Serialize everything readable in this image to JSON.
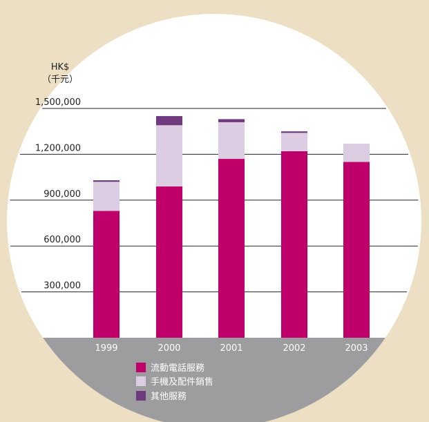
{
  "colors": {
    "background": "#ecdfc4",
    "disc": "#ffffff",
    "axis_band": "#9d9c9f",
    "mobile": "#c0006a",
    "handsets": "#dccde2",
    "others": "#6f3b7e",
    "gridline": "#222222"
  },
  "chart_data": {
    "type": "bar",
    "stacked": true,
    "unit_label": [
      "HK$",
      "（千元）"
    ],
    "categories": [
      "1999",
      "2000",
      "2001",
      "2002",
      "2003"
    ],
    "y_ticks": [
      "300,000",
      "600,000",
      "900,000",
      "1,200,000",
      "1,500,000"
    ],
    "y_tick_values": [
      300000,
      600000,
      900000,
      1200000,
      1500000
    ],
    "ylim": [
      0,
      1500000
    ],
    "grid": true,
    "legend_position": "bottom",
    "series": [
      {
        "name": "流動電話服務",
        "color": "#c0006a",
        "values": [
          830000,
          990000,
          1170000,
          1220000,
          1150000
        ]
      },
      {
        "name": "手機及配件銷售",
        "color": "#dccde2",
        "values": [
          190000,
          400000,
          240000,
          120000,
          120000
        ]
      },
      {
        "name": "其他服務",
        "color": "#6f3b7e",
        "values": [
          10000,
          60000,
          20000,
          10000,
          0
        ]
      }
    ]
  }
}
